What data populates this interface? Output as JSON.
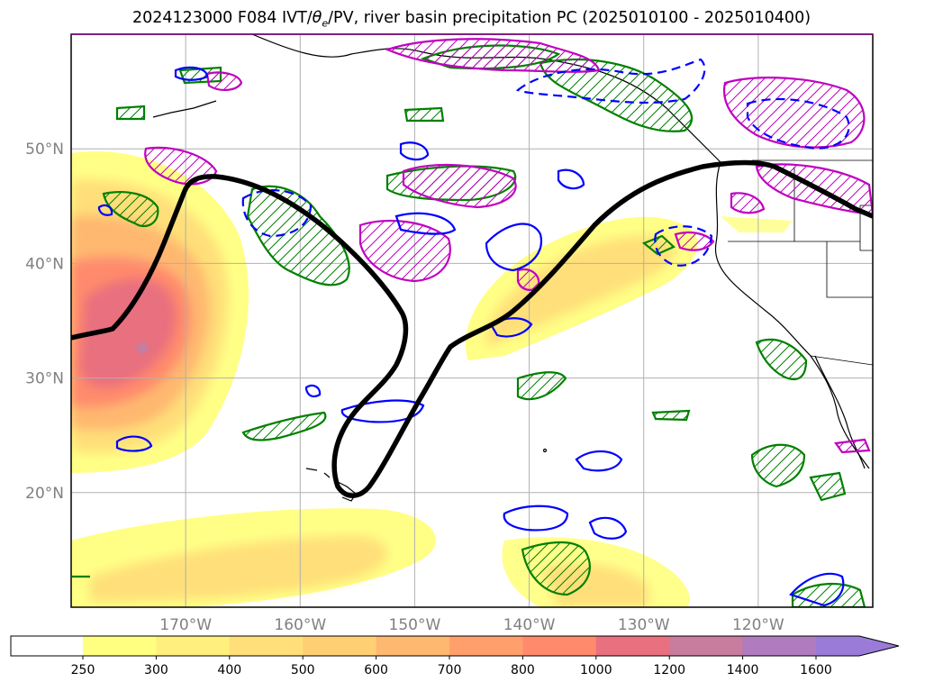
{
  "title": {
    "init": "2024123000",
    "forecast": "F084",
    "fields_prefix": "IVT/",
    "theta": "θ",
    "theta_sub": "e",
    "fields_suffix": "/PV, river basin precipitation PC (2025010100 - 2025010400)"
  },
  "map": {
    "projection": "PlateCarree",
    "extent_lon": [
      -180,
      -110
    ],
    "extent_lat": [
      10,
      60
    ],
    "lat_ticks": [
      {
        "lat": 20,
        "label": "20°N"
      },
      {
        "lat": 30,
        "label": "30°N"
      },
      {
        "lat": 40,
        "label": "40°N"
      },
      {
        "lat": 50,
        "label": "50°N"
      }
    ],
    "lon_ticks": [
      {
        "lon": -170,
        "label": "170°W"
      },
      {
        "lon": -160,
        "label": "160°W"
      },
      {
        "lon": -150,
        "label": "150°W"
      },
      {
        "lon": -140,
        "label": "140°W"
      },
      {
        "lon": -130,
        "label": "130°W"
      },
      {
        "lon": -120,
        "label": "120°W"
      }
    ],
    "grid": true,
    "colors": {
      "pv_line": "#000000",
      "theta_e_pos": "#008000",
      "theta_e_neg": "#0000ff",
      "precip_pc": "#c000c0",
      "coast": "#000000",
      "grid": "#b0b0b0"
    }
  },
  "colorbar": {
    "field": "IVT",
    "levels": [
      "250",
      "300",
      "400",
      "500",
      "600",
      "700",
      "800",
      "1000",
      "1200",
      "1400",
      "1600"
    ],
    "colors": [
      "#ffff80",
      "#ffef7d",
      "#ffdf79",
      "#ffcf74",
      "#ffb870",
      "#ffa06c",
      "#ff8a6c",
      "#e8707f",
      "#c87c9e",
      "#b07cbf",
      "#a07cd0",
      "#9a7cd8"
    ],
    "extend": "max"
  }
}
